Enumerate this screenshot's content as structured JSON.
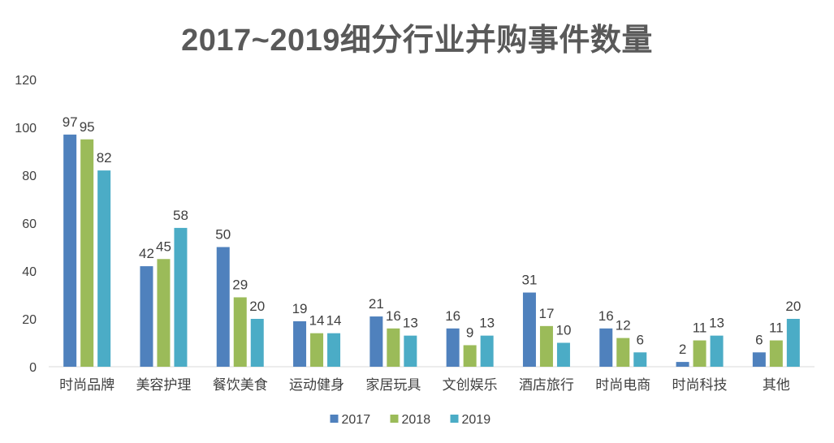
{
  "chart_data": {
    "type": "bar",
    "title": "2017~2019细分行业并购事件数量",
    "xlabel": "",
    "ylabel": "",
    "ylim": [
      0,
      120
    ],
    "yticks": [
      0,
      20,
      40,
      60,
      80,
      100,
      120
    ],
    "grid": false,
    "legend_position": "bottom",
    "categories": [
      "时尚品牌",
      "美容护理",
      "餐饮美食",
      "运动健身",
      "家居玩具",
      "文创娱乐",
      "酒店旅行",
      "时尚电商",
      "时尚科技",
      "其他"
    ],
    "series": [
      {
        "name": "2017",
        "color": "#4f81bd",
        "values": [
          97,
          42,
          50,
          19,
          21,
          16,
          31,
          16,
          2,
          6
        ]
      },
      {
        "name": "2018",
        "color": "#9bbb59",
        "values": [
          95,
          45,
          29,
          14,
          16,
          9,
          17,
          12,
          11,
          11
        ]
      },
      {
        "name": "2019",
        "color": "#4bacc6",
        "values": [
          82,
          58,
          20,
          14,
          13,
          13,
          10,
          6,
          13,
          20
        ]
      }
    ]
  }
}
